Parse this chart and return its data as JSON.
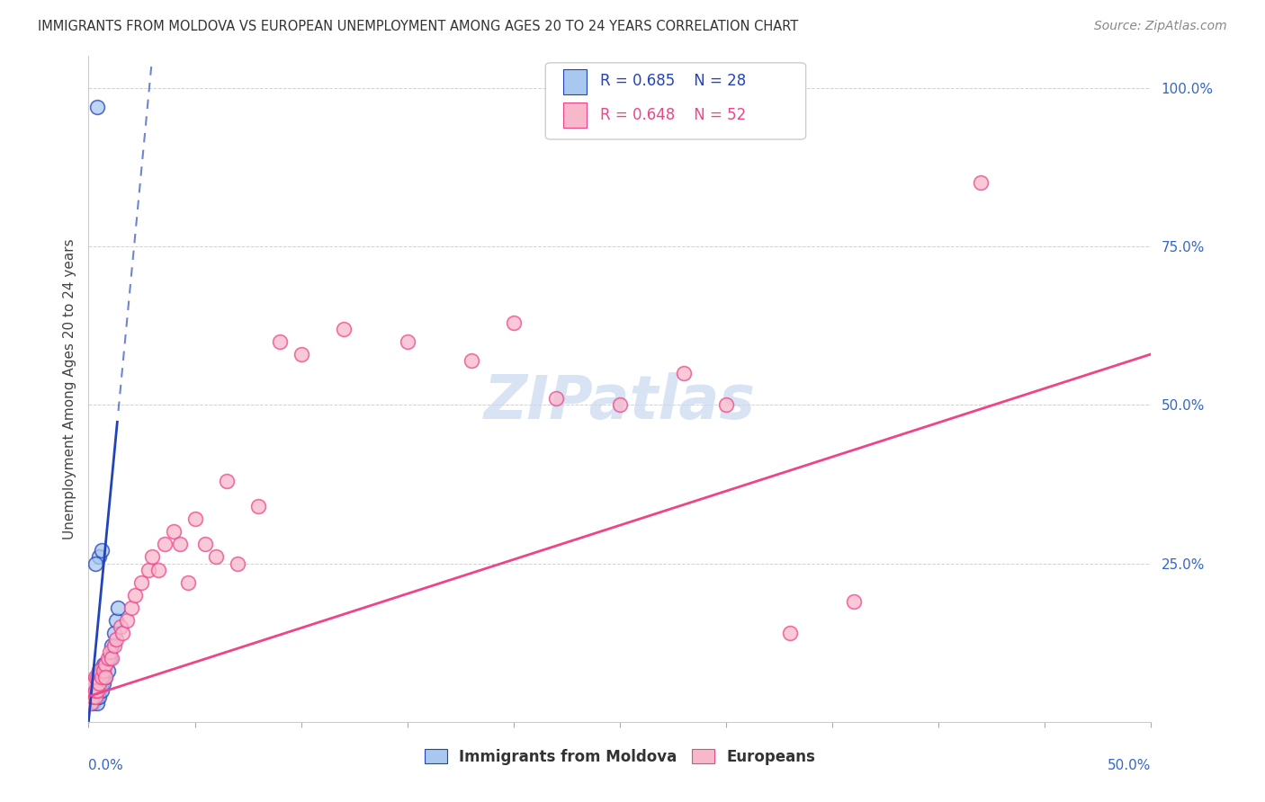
{
  "title": "IMMIGRANTS FROM MOLDOVA VS EUROPEAN UNEMPLOYMENT AMONG AGES 20 TO 24 YEARS CORRELATION CHART",
  "source": "Source: ZipAtlas.com",
  "ylabel": "Unemployment Among Ages 20 to 24 years",
  "xlim": [
    0,
    0.5
  ],
  "ylim": [
    0,
    1.05
  ],
  "blue_color": "#A8C8F0",
  "pink_color": "#F8B8CC",
  "blue_line_color": "#2244BB",
  "pink_line_color": "#EE4488",
  "watermark_color": "#C8D8EE",
  "legend_blue_r": "R = 0.685",
  "legend_blue_n": "N = 28",
  "legend_pink_r": "R = 0.648",
  "legend_pink_n": "N = 52",
  "blue_scatter_x": [
    0.002,
    0.003,
    0.003,
    0.004,
    0.004,
    0.004,
    0.005,
    0.005,
    0.005,
    0.005,
    0.006,
    0.006,
    0.006,
    0.007,
    0.007,
    0.007,
    0.008,
    0.008,
    0.009,
    0.01,
    0.011,
    0.012,
    0.013,
    0.014,
    0.004,
    0.005,
    0.006,
    0.003
  ],
  "blue_scatter_y": [
    0.03,
    0.04,
    0.05,
    0.03,
    0.04,
    0.06,
    0.04,
    0.05,
    0.07,
    0.08,
    0.05,
    0.06,
    0.08,
    0.06,
    0.07,
    0.09,
    0.07,
    0.09,
    0.08,
    0.1,
    0.12,
    0.14,
    0.16,
    0.18,
    0.97,
    0.26,
    0.27,
    0.25
  ],
  "pink_scatter_x": [
    0.001,
    0.001,
    0.002,
    0.002,
    0.003,
    0.003,
    0.003,
    0.004,
    0.004,
    0.005,
    0.005,
    0.006,
    0.007,
    0.008,
    0.008,
    0.009,
    0.01,
    0.011,
    0.012,
    0.013,
    0.015,
    0.016,
    0.018,
    0.02,
    0.022,
    0.025,
    0.028,
    0.03,
    0.033,
    0.036,
    0.04,
    0.043,
    0.047,
    0.05,
    0.055,
    0.06,
    0.065,
    0.07,
    0.08,
    0.09,
    0.1,
    0.12,
    0.15,
    0.18,
    0.2,
    0.22,
    0.25,
    0.28,
    0.3,
    0.33,
    0.36,
    0.42
  ],
  "pink_scatter_y": [
    0.03,
    0.05,
    0.04,
    0.06,
    0.04,
    0.05,
    0.07,
    0.05,
    0.07,
    0.06,
    0.08,
    0.07,
    0.08,
    0.09,
    0.07,
    0.1,
    0.11,
    0.1,
    0.12,
    0.13,
    0.15,
    0.14,
    0.16,
    0.18,
    0.2,
    0.22,
    0.24,
    0.26,
    0.24,
    0.28,
    0.3,
    0.28,
    0.22,
    0.32,
    0.28,
    0.26,
    0.38,
    0.25,
    0.34,
    0.6,
    0.58,
    0.62,
    0.6,
    0.57,
    0.63,
    0.51,
    0.5,
    0.55,
    0.5,
    0.14,
    0.19,
    0.85
  ],
  "blue_slope": 35.0,
  "blue_intercept": 0.0,
  "pink_slope": 1.08,
  "pink_intercept": 0.04,
  "marker_size": 130,
  "marker_linewidth": 1.2
}
